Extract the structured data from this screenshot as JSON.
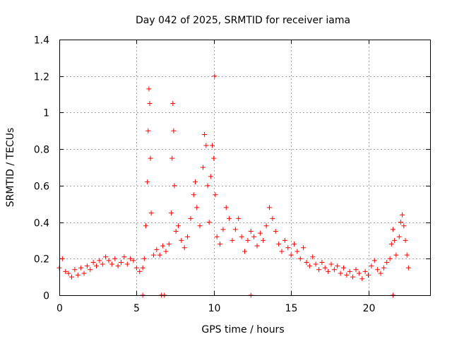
{
  "chart_data": {
    "type": "scatter",
    "title": "Day 042 of 2025, SRMTID for receiver iama",
    "xlabel": "GPS time / hours",
    "ylabel": "SRMTID / TECUs",
    "xlim": [
      0,
      24
    ],
    "ylim": [
      0,
      1.4
    ],
    "xticks": [
      "0",
      "5",
      "10",
      "15",
      "20"
    ],
    "yticks": [
      "0",
      "0.2",
      "0.4",
      "0.6",
      "0.8",
      "1",
      "1.2",
      "1.4"
    ],
    "grid": true,
    "marker": "plus",
    "series": [
      {
        "name": "SRMTID",
        "color": "#ff0000",
        "points": [
          [
            0.0,
            0.15
          ],
          [
            0.2,
            0.2
          ],
          [
            0.4,
            0.13
          ],
          [
            0.6,
            0.12
          ],
          [
            0.8,
            0.1
          ],
          [
            1.0,
            0.14
          ],
          [
            1.2,
            0.11
          ],
          [
            1.4,
            0.15
          ],
          [
            1.6,
            0.12
          ],
          [
            1.8,
            0.16
          ],
          [
            2.0,
            0.14
          ],
          [
            2.2,
            0.18
          ],
          [
            2.4,
            0.16
          ],
          [
            2.6,
            0.19
          ],
          [
            2.8,
            0.17
          ],
          [
            3.0,
            0.21
          ],
          [
            3.2,
            0.19
          ],
          [
            3.4,
            0.17
          ],
          [
            3.6,
            0.2
          ],
          [
            3.8,
            0.16
          ],
          [
            4.0,
            0.18
          ],
          [
            4.2,
            0.21
          ],
          [
            4.4,
            0.17
          ],
          [
            4.6,
            0.2
          ],
          [
            4.8,
            0.19
          ],
          [
            5.0,
            0.15
          ],
          [
            5.2,
            0.13
          ],
          [
            5.4,
            0.15
          ],
          [
            5.5,
            0.2
          ],
          [
            5.6,
            0.38
          ],
          [
            5.7,
            0.62
          ],
          [
            5.75,
            0.9
          ],
          [
            5.8,
            1.13
          ],
          [
            5.85,
            1.05
          ],
          [
            5.9,
            0.75
          ],
          [
            5.95,
            0.45
          ],
          [
            6.1,
            0.22
          ],
          [
            6.3,
            0.25
          ],
          [
            6.5,
            0.22
          ],
          [
            6.7,
            0.27
          ],
          [
            6.9,
            0.24
          ],
          [
            7.1,
            0.28
          ],
          [
            7.25,
            0.45
          ],
          [
            7.3,
            0.75
          ],
          [
            7.35,
            1.05
          ],
          [
            7.4,
            0.9
          ],
          [
            7.45,
            0.6
          ],
          [
            7.55,
            0.35
          ],
          [
            7.7,
            0.38
          ],
          [
            7.9,
            0.3
          ],
          [
            8.1,
            0.26
          ],
          [
            8.3,
            0.32
          ],
          [
            8.5,
            0.42
          ],
          [
            8.7,
            0.55
          ],
          [
            8.8,
            0.62
          ],
          [
            8.9,
            0.48
          ],
          [
            9.1,
            0.38
          ],
          [
            9.3,
            0.7
          ],
          [
            9.4,
            0.88
          ],
          [
            9.5,
            0.82
          ],
          [
            9.6,
            0.6
          ],
          [
            9.7,
            0.4
          ],
          [
            9.8,
            0.65
          ],
          [
            9.9,
            0.82
          ],
          [
            10.0,
            0.75
          ],
          [
            10.05,
            1.2
          ],
          [
            10.1,
            0.55
          ],
          [
            10.2,
            0.32
          ],
          [
            10.4,
            0.28
          ],
          [
            10.6,
            0.36
          ],
          [
            10.8,
            0.48
          ],
          [
            11.0,
            0.42
          ],
          [
            11.2,
            0.3
          ],
          [
            11.4,
            0.36
          ],
          [
            11.6,
            0.42
          ],
          [
            11.8,
            0.32
          ],
          [
            12.0,
            0.24
          ],
          [
            12.2,
            0.3
          ],
          [
            12.4,
            0.35
          ],
          [
            12.6,
            0.32
          ],
          [
            12.8,
            0.27
          ],
          [
            13.0,
            0.34
          ],
          [
            13.2,
            0.3
          ],
          [
            13.4,
            0.38
          ],
          [
            13.6,
            0.48
          ],
          [
            13.8,
            0.42
          ],
          [
            14.0,
            0.35
          ],
          [
            14.2,
            0.28
          ],
          [
            14.4,
            0.24
          ],
          [
            14.6,
            0.3
          ],
          [
            14.8,
            0.26
          ],
          [
            15.0,
            0.22
          ],
          [
            15.2,
            0.28
          ],
          [
            15.4,
            0.24
          ],
          [
            15.6,
            0.2
          ],
          [
            15.8,
            0.26
          ],
          [
            16.0,
            0.18
          ],
          [
            16.2,
            0.16
          ],
          [
            16.4,
            0.21
          ],
          [
            16.6,
            0.17
          ],
          [
            16.8,
            0.14
          ],
          [
            17.0,
            0.18
          ],
          [
            17.2,
            0.15
          ],
          [
            17.4,
            0.13
          ],
          [
            17.6,
            0.17
          ],
          [
            17.8,
            0.14
          ],
          [
            18.0,
            0.16
          ],
          [
            18.2,
            0.12
          ],
          [
            18.4,
            0.15
          ],
          [
            18.6,
            0.11
          ],
          [
            18.8,
            0.13
          ],
          [
            19.0,
            0.1
          ],
          [
            19.2,
            0.14
          ],
          [
            19.4,
            0.12
          ],
          [
            19.6,
            0.09
          ],
          [
            19.8,
            0.13
          ],
          [
            20.0,
            0.11
          ],
          [
            20.2,
            0.16
          ],
          [
            20.4,
            0.19
          ],
          [
            20.6,
            0.14
          ],
          [
            20.8,
            0.12
          ],
          [
            21.0,
            0.15
          ],
          [
            21.2,
            0.18
          ],
          [
            21.4,
            0.2
          ],
          [
            21.5,
            0.28
          ],
          [
            21.6,
            0.36
          ],
          [
            21.7,
            0.3
          ],
          [
            21.8,
            0.22
          ],
          [
            22.0,
            0.32
          ],
          [
            22.1,
            0.4
          ],
          [
            22.2,
            0.44
          ],
          [
            22.3,
            0.38
          ],
          [
            22.4,
            0.3
          ],
          [
            22.5,
            0.22
          ],
          [
            22.6,
            0.15
          ],
          [
            5.4,
            0.0
          ],
          [
            6.6,
            0.0
          ],
          [
            6.8,
            0.0
          ],
          [
            12.4,
            0.0
          ],
          [
            21.6,
            0.0
          ]
        ]
      }
    ]
  }
}
